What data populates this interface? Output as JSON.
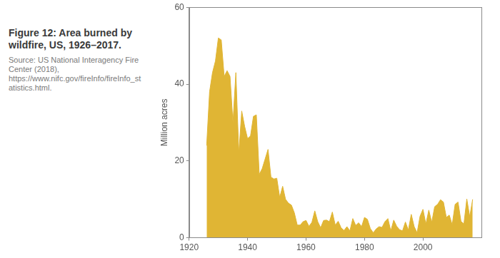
{
  "chart_data": {
    "type": "area",
    "title": "Figure 12: Area burned by wildfire, US, 1926–2017.",
    "subtitle": "Source: US National Interagency Fire Center (2018), https://www.nifc.gov/fireInfo/fireInfo_statistics.html.",
    "y_label": "Million acres",
    "x": [
      1926,
      1927,
      1928,
      1929,
      1930,
      1931,
      1932,
      1933,
      1934,
      1935,
      1936,
      1937,
      1938,
      1939,
      1940,
      1941,
      1942,
      1943,
      1944,
      1945,
      1946,
      1947,
      1948,
      1949,
      1950,
      1951,
      1952,
      1953,
      1954,
      1955,
      1956,
      1957,
      1958,
      1959,
      1960,
      1961,
      1962,
      1963,
      1964,
      1965,
      1966,
      1967,
      1968,
      1969,
      1970,
      1971,
      1972,
      1973,
      1974,
      1975,
      1976,
      1977,
      1978,
      1979,
      1980,
      1981,
      1982,
      1983,
      1984,
      1985,
      1986,
      1987,
      1988,
      1989,
      1990,
      1991,
      1992,
      1993,
      1994,
      1995,
      1996,
      1997,
      1998,
      1999,
      2000,
      2001,
      2002,
      2003,
      2004,
      2005,
      2006,
      2007,
      2008,
      2009,
      2010,
      2011,
      2012,
      2013,
      2014,
      2015,
      2016,
      2017
    ],
    "values": [
      24,
      38,
      43,
      46,
      52,
      51.5,
      42,
      43.5,
      42,
      30,
      43,
      22,
      33,
      29,
      25.8,
      26.5,
      31.6,
      32,
      16.5,
      18,
      20.5,
      23,
      15.8,
      15.3,
      15.5,
      10.5,
      13.4,
      10,
      9,
      8.5,
      6.5,
      3.3,
      3.3,
      4.2,
      4.5,
      3,
      4,
      7,
      4.2,
      2.6,
      4.5,
      4.6,
      4.2,
      6.7,
      3.3,
      4.3,
      2.6,
      1.9,
      2.9,
      1.8,
      5,
      3.2,
      3.9,
      2.9,
      5.3,
      4.8,
      2.4,
      1.3,
      2.3,
      2.9,
      2.7,
      4.2,
      5,
      1.8,
      4.6,
      3,
      2.1,
      1.8,
      4.1,
      2,
      6.1,
      2.9,
      1.3,
      5.6,
      7.4,
      3.6,
      7.2,
      4,
      8.1,
      8.7,
      9.9,
      9.3,
      5.3,
      5.9,
      3.4,
      8.7,
      9.3,
      4.3,
      3.6,
      10.1,
      5.5,
      10
    ],
    "color": "#e0b534",
    "xlim": [
      1920,
      2020
    ],
    "xticks": [
      1920,
      1940,
      1960,
      1980,
      2000
    ],
    "ylim": [
      0,
      60
    ],
    "yticks": [
      0,
      20,
      40,
      60
    ],
    "grid": false
  }
}
